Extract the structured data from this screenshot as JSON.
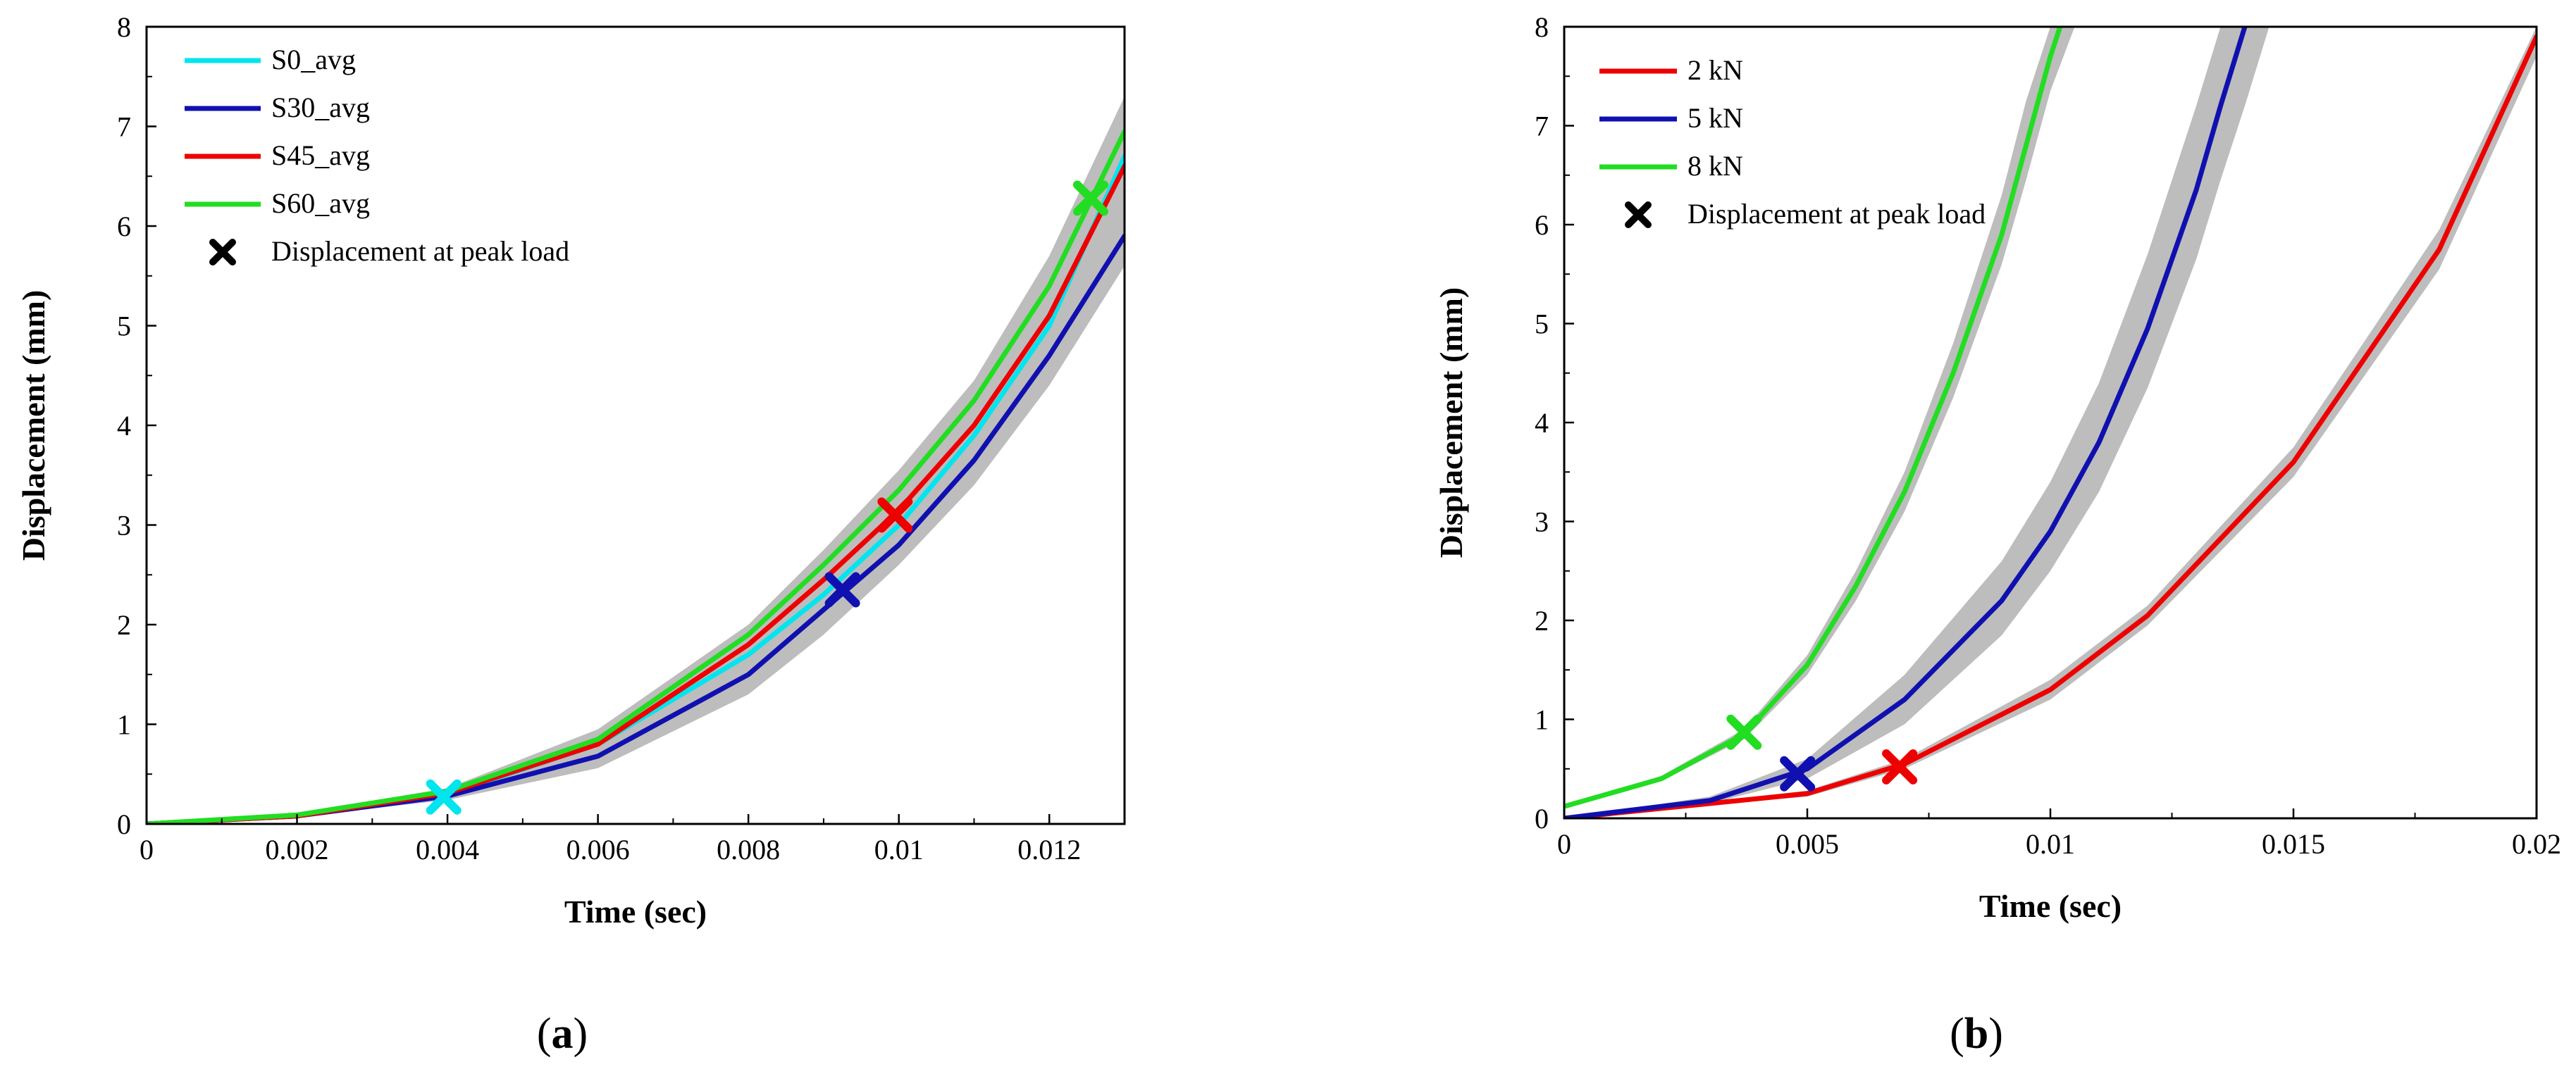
{
  "chart_data": [
    {
      "panel": "a",
      "type": "line",
      "xlabel": "Time (sec)",
      "ylabel": "Displacement (mm)",
      "xlim": [
        0,
        0.013
      ],
      "ylim": [
        0,
        8
      ],
      "xticks": [
        0,
        0.002,
        0.004,
        0.006,
        0.008,
        0.01,
        0.012
      ],
      "xtick_labels": [
        "0",
        "0.002",
        "0.004",
        "0.006",
        "0.008",
        "0.01",
        "0.012"
      ],
      "yticks": [
        0,
        1,
        2,
        3,
        4,
        5,
        6,
        7,
        8
      ],
      "ytick_labels": [
        "0",
        "1",
        "2",
        "3",
        "4",
        "5",
        "6",
        "7",
        "8"
      ],
      "legend_position": "top-left",
      "series": [
        {
          "name": "S0_avg",
          "color": "#00e5ee",
          "x": [
            0,
            0.002,
            0.004,
            0.006,
            0.008,
            0.009,
            0.01,
            0.011,
            0.012,
            0.013
          ],
          "y": [
            0,
            0.08,
            0.3,
            0.8,
            1.7,
            2.3,
            3.0,
            3.9,
            5.0,
            6.7
          ]
        },
        {
          "name": "S30_avg",
          "color": "#1010b0",
          "x": [
            0,
            0.002,
            0.004,
            0.006,
            0.008,
            0.009,
            0.01,
            0.011,
            0.012,
            0.013
          ],
          "y": [
            0,
            0.08,
            0.28,
            0.68,
            1.5,
            2.15,
            2.8,
            3.65,
            4.7,
            5.9
          ]
        },
        {
          "name": "S45_avg",
          "color": "#ee0000",
          "x": [
            0,
            0.002,
            0.004,
            0.006,
            0.008,
            0.009,
            0.01,
            0.011,
            0.012,
            0.013
          ],
          "y": [
            0,
            0.08,
            0.31,
            0.8,
            1.8,
            2.45,
            3.15,
            4.0,
            5.1,
            6.6
          ]
        },
        {
          "name": "S60_avg",
          "color": "#22dd22",
          "x": [
            0,
            0.002,
            0.004,
            0.006,
            0.008,
            0.009,
            0.01,
            0.011,
            0.012,
            0.013
          ],
          "y": [
            0,
            0.09,
            0.33,
            0.85,
            1.9,
            2.6,
            3.35,
            4.25,
            5.4,
            6.95
          ]
        }
      ],
      "markers_label": "Displacement at peak load",
      "markers": [
        {
          "series": "S0_avg",
          "x": 0.00395,
          "y": 0.27,
          "color": "#00e5ee"
        },
        {
          "series": "S30_avg",
          "x": 0.00925,
          "y": 2.35,
          "color": "#1010b0"
        },
        {
          "series": "S45_avg",
          "x": 0.00995,
          "y": 3.1,
          "color": "#ee0000"
        },
        {
          "series": "S60_avg",
          "x": 0.01255,
          "y": 6.28,
          "color": "#22dd22"
        }
      ],
      "band_color": "#bdbdbd",
      "band": {
        "x": [
          0,
          0.002,
          0.004,
          0.006,
          0.008,
          0.009,
          0.01,
          0.011,
          0.012,
          0.013
        ],
        "lower": [
          0,
          0.07,
          0.24,
          0.56,
          1.3,
          1.9,
          2.6,
          3.4,
          4.4,
          5.6
        ],
        "upper": [
          0,
          0.1,
          0.36,
          0.95,
          2.0,
          2.75,
          3.55,
          4.45,
          5.7,
          7.3
        ]
      }
    },
    {
      "panel": "b",
      "type": "line",
      "xlabel": "Time (sec)",
      "ylabel": "Displacement (mm)",
      "xlim": [
        0,
        0.02
      ],
      "ylim": [
        0,
        8
      ],
      "xticks": [
        0,
        0.005,
        0.01,
        0.015,
        0.02
      ],
      "xtick_labels": [
        "0",
        "0.005",
        "0.01",
        "0.015",
        "0.02"
      ],
      "yticks": [
        0,
        1,
        2,
        3,
        4,
        5,
        6,
        7,
        8
      ],
      "ytick_labels": [
        "0",
        "1",
        "2",
        "3",
        "4",
        "5",
        "6",
        "7",
        "8"
      ],
      "legend_position": "top-left",
      "series": [
        {
          "name": "2 kN",
          "color": "#ee0000",
          "x": [
            0,
            0.005,
            0.007,
            0.01,
            0.012,
            0.015,
            0.018,
            0.02
          ],
          "y": [
            0,
            0.25,
            0.55,
            1.3,
            2.05,
            3.6,
            5.75,
            7.9
          ]
        },
        {
          "name": "5 kN",
          "color": "#1010b0",
          "x": [
            0,
            0.003,
            0.005,
            0.007,
            0.009,
            0.01,
            0.011,
            0.012,
            0.013,
            0.0135,
            0.014
          ],
          "y": [
            0,
            0.18,
            0.5,
            1.2,
            2.2,
            2.9,
            3.8,
            4.95,
            6.35,
            7.2,
            8.0
          ]
        },
        {
          "name": "8 kN",
          "color": "#22dd22",
          "x": [
            0,
            0.002,
            0.0037,
            0.005,
            0.006,
            0.007,
            0.008,
            0.009,
            0.0095,
            0.01,
            0.0102
          ],
          "y": [
            0.12,
            0.4,
            0.85,
            1.55,
            2.35,
            3.3,
            4.5,
            5.9,
            6.8,
            7.7,
            8.0
          ]
        }
      ],
      "markers_label": "Displacement at peak load",
      "markers": [
        {
          "series": "2 kN",
          "x": 0.0069,
          "y": 0.52,
          "color": "#ee0000"
        },
        {
          "series": "5 kN",
          "x": 0.0048,
          "y": 0.45,
          "color": "#1010b0"
        },
        {
          "series": "8 kN",
          "x": 0.0037,
          "y": 0.87,
          "color": "#22dd22"
        }
      ],
      "band_color": "#bdbdbd",
      "bands": [
        {
          "series": "2 kN",
          "x": [
            0,
            0.005,
            0.007,
            0.01,
            0.012,
            0.015,
            0.018,
            0.02
          ],
          "lower": [
            0,
            0.22,
            0.5,
            1.2,
            1.95,
            3.45,
            5.55,
            7.7
          ],
          "upper": [
            0,
            0.28,
            0.6,
            1.4,
            2.15,
            3.75,
            5.95,
            8.0
          ]
        },
        {
          "series": "5 kN",
          "x": [
            0,
            0.003,
            0.005,
            0.007,
            0.009,
            0.01,
            0.011,
            0.012,
            0.013,
            0.0135,
            0.014,
            0.0145
          ],
          "lower": [
            0,
            0.15,
            0.4,
            0.95,
            1.85,
            2.5,
            3.3,
            4.35,
            5.65,
            6.45,
            7.2,
            8.0
          ],
          "upper": [
            0,
            0.22,
            0.6,
            1.45,
            2.6,
            3.4,
            4.4,
            5.7,
            7.2,
            8.0,
            8.0,
            8.0
          ]
        },
        {
          "series": "8 kN",
          "x": [
            0,
            0.002,
            0.0037,
            0.005,
            0.006,
            0.007,
            0.008,
            0.009,
            0.0095,
            0.01,
            0.0105
          ],
          "lower": [
            0.12,
            0.38,
            0.8,
            1.45,
            2.2,
            3.1,
            4.25,
            5.6,
            6.45,
            7.35,
            8.0
          ],
          "upper": [
            0.12,
            0.43,
            0.9,
            1.65,
            2.5,
            3.5,
            4.8,
            6.3,
            7.25,
            8.0,
            8.0
          ]
        }
      ]
    }
  ],
  "panel_labels": {
    "a": "a",
    "b": "b"
  },
  "panel_paren": {
    "open": "(",
    "close": ")"
  }
}
